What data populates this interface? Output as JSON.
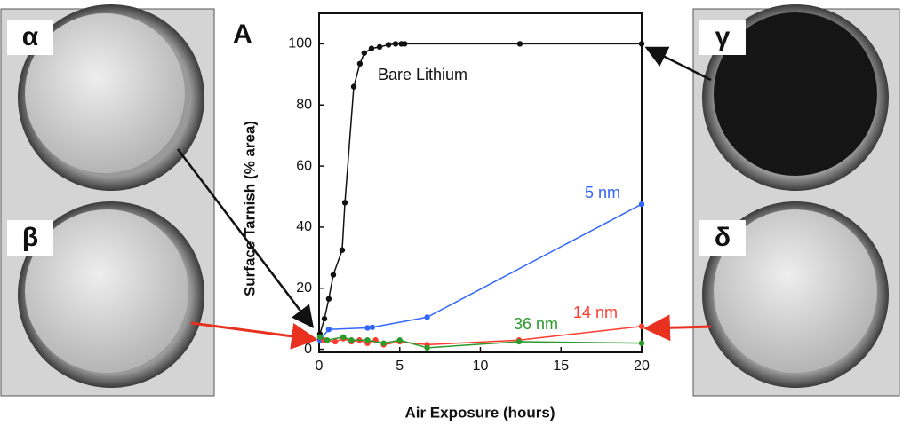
{
  "chart_data": {
    "type": "line",
    "panel_label": "A",
    "x_label": "Air Exposure (hours)",
    "y_label": "Surface Tarnish (% area)",
    "xlim": [
      0,
      20
    ],
    "xticks": [
      0,
      5,
      10,
      15,
      20
    ],
    "ylim": [
      -1,
      110
    ],
    "yticks": [
      0,
      20,
      40,
      60,
      80,
      100
    ],
    "series": [
      {
        "name": "Bare Lithium",
        "color": "#111111",
        "x": [
          0.05,
          0.33,
          0.6,
          0.88,
          1.43,
          1.6,
          2.15,
          2.53,
          2.8,
          3.25,
          3.75,
          4.3,
          4.74,
          5.1,
          5.3,
          12.45,
          20
        ],
        "values": [
          5,
          10,
          16.5,
          24.4,
          32.5,
          48,
          86,
          93.5,
          97,
          98.5,
          99,
          99.7,
          100,
          100,
          100,
          100,
          100
        ]
      },
      {
        "name": "5 nm",
        "color": "#3366ff",
        "x": [
          0.05,
          0.6,
          3,
          3.3,
          6.7,
          20
        ],
        "values": [
          3,
          6.5,
          7,
          7.2,
          10.5,
          47.5
        ]
      },
      {
        "name": "14 nm",
        "color": "#ff3b2f",
        "x": [
          0.3,
          1,
          1.5,
          2,
          2.5,
          3,
          3.5,
          4,
          5,
          6.7,
          12.4,
          20
        ],
        "values": [
          3,
          2.5,
          3.5,
          2.5,
          3,
          2,
          3,
          1.5,
          2.5,
          1.5,
          3,
          7.5
        ]
      },
      {
        "name": "36 nm",
        "color": "#2a9a2a",
        "x": [
          0.05,
          0.5,
          1.5,
          2,
          3,
          4,
          5,
          6.7,
          12.4,
          20
        ],
        "values": [
          4,
          3,
          4,
          3,
          3,
          2,
          3,
          0.5,
          2.5,
          2
        ]
      }
    ],
    "photo_labels": [
      "α",
      "β",
      "γ",
      "δ"
    ]
  }
}
